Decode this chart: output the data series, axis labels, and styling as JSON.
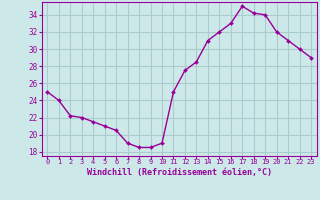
{
  "x": [
    0,
    1,
    2,
    3,
    4,
    5,
    6,
    7,
    8,
    9,
    10,
    11,
    12,
    13,
    14,
    15,
    16,
    17,
    18,
    19,
    20,
    21,
    22,
    23
  ],
  "y": [
    25.0,
    24.0,
    22.2,
    22.0,
    21.5,
    21.0,
    20.5,
    19.0,
    18.5,
    18.5,
    19.0,
    25.0,
    27.5,
    28.5,
    31.0,
    32.0,
    33.0,
    35.0,
    34.2,
    34.0,
    32.0,
    31.0,
    30.0,
    29.0
  ],
  "line_color": "#990099",
  "marker_color": "#990099",
  "bg_color": "#cce8e8",
  "grid_color": "#aacccc",
  "axis_color": "#990099",
  "tick_color": "#990099",
  "xlabel": "Windchill (Refroidissement éolien,°C)",
  "xlim": [
    -0.5,
    23.5
  ],
  "ylim": [
    17.5,
    35.5
  ],
  "yticks": [
    18,
    20,
    22,
    24,
    26,
    28,
    30,
    32,
    34
  ],
  "xtick_labels": [
    "0",
    "1",
    "2",
    "3",
    "4",
    "5",
    "6",
    "7",
    "8",
    "9",
    "10",
    "11",
    "12",
    "13",
    "14",
    "15",
    "16",
    "17",
    "18",
    "19",
    "20",
    "21",
    "22",
    "23"
  ]
}
